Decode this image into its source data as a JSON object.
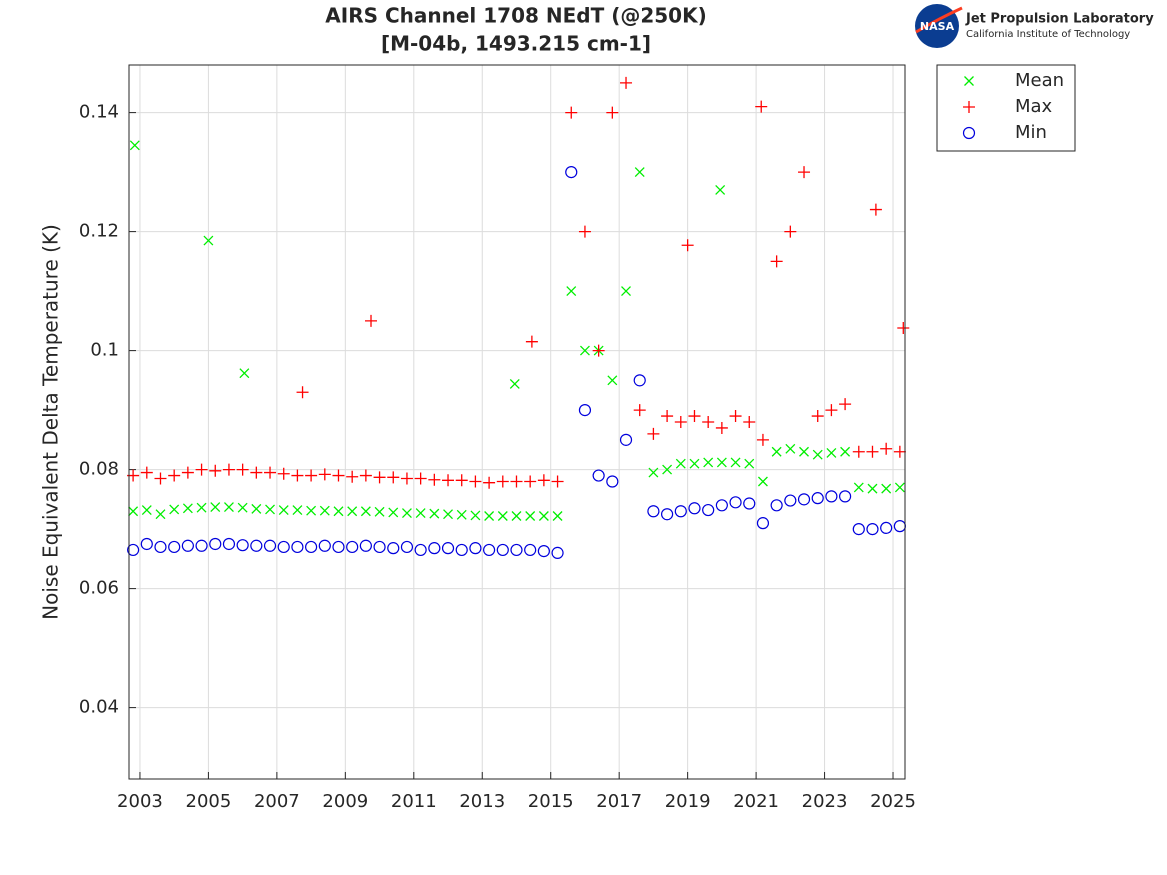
{
  "chart_data": {
    "type": "scatter",
    "title": "AIRS Channel 1708 NEdT (@250K)",
    "subtitle": "[M-04b, 1493.215 cm-1]",
    "y_label": "Noise Equivalent Delta Temperature (K)",
    "logo": {
      "badge": "NASA",
      "name": "Jet Propulsion Laboratory",
      "institution": "California Institute of Technology"
    },
    "x": [
      2002.8,
      2003.2,
      2003.6,
      2004.0,
      2004.4,
      2004.8,
      2005.2,
      2005.6,
      2006.0,
      2006.4,
      2006.8,
      2007.2,
      2007.6,
      2008.0,
      2008.4,
      2008.8,
      2009.2,
      2009.6,
      2010.0,
      2010.4,
      2010.8,
      2011.2,
      2011.6,
      2012.0,
      2012.4,
      2012.8,
      2013.2,
      2013.6,
      2014.0,
      2014.4,
      2014.8,
      2015.2,
      2015.6,
      2016.0,
      2016.4,
      2016.8,
      2017.2,
      2017.6,
      2018.0,
      2018.4,
      2018.8,
      2019.2,
      2019.6,
      2020.0,
      2020.4,
      2020.8,
      2021.2,
      2021.6,
      2022.0,
      2022.4,
      2022.8,
      2023.2,
      2023.6,
      2024.0,
      2024.4,
      2024.8,
      2025.2,
      2002.85,
      2005.0,
      2006.05,
      2009.75,
      2007.75,
      2013.95,
      2014.45,
      2019.95,
      2019.0,
      2024.5,
      2025.3,
      2021.15
    ],
    "series": [
      {
        "name": "Mean",
        "color": "#00ee00",
        "marker": "x",
        "values": [
          0.073,
          0.0732,
          0.0725,
          0.0733,
          0.0735,
          0.0736,
          0.0737,
          0.0737,
          0.0736,
          0.0734,
          0.0733,
          0.0732,
          0.0732,
          0.0731,
          0.0731,
          0.073,
          0.073,
          0.073,
          0.0729,
          0.0728,
          0.0727,
          0.0727,
          0.0726,
          0.0725,
          0.0724,
          0.0723,
          0.0722,
          0.0722,
          0.0722,
          0.0722,
          0.0722,
          0.0722,
          0.11,
          0.1,
          0.1,
          0.095,
          0.11,
          0.13,
          0.0795,
          0.08,
          0.081,
          0.081,
          0.0812,
          0.0812,
          0.0812,
          0.081,
          0.078,
          0.083,
          0.0835,
          0.083,
          0.0825,
          0.0828,
          0.083,
          0.077,
          0.0768,
          0.0768,
          0.077,
          0.1345,
          0.1185,
          0.0962,
          null,
          null,
          0.0944,
          null,
          0.127,
          null,
          null,
          null,
          null
        ]
      },
      {
        "name": "Max",
        "color": "#ff0000",
        "marker": "+",
        "values": [
          0.079,
          0.0795,
          0.0785,
          0.079,
          0.0795,
          0.08,
          0.0798,
          0.08,
          0.08,
          0.0795,
          0.0795,
          0.0793,
          0.079,
          0.079,
          0.0792,
          0.079,
          0.0788,
          0.079,
          0.0787,
          0.0787,
          0.0785,
          0.0785,
          0.0783,
          0.0782,
          0.0782,
          0.078,
          0.0778,
          0.078,
          0.078,
          0.078,
          0.0782,
          0.078,
          0.14,
          0.12,
          0.1,
          0.14,
          0.145,
          0.09,
          0.086,
          0.089,
          0.088,
          0.089,
          0.088,
          0.087,
          0.089,
          0.088,
          0.085,
          0.115,
          0.12,
          0.13,
          0.089,
          0.09,
          0.091,
          0.083,
          0.083,
          0.0835,
          0.083,
          null,
          null,
          null,
          0.105,
          0.093,
          null,
          0.1015,
          null,
          0.1177,
          0.1237,
          0.1038,
          0.141
        ]
      },
      {
        "name": "Min",
        "color": "#0000dd",
        "marker": "o",
        "values": [
          0.0665,
          0.0675,
          0.067,
          0.067,
          0.0672,
          0.0672,
          0.0675,
          0.0675,
          0.0673,
          0.0672,
          0.0672,
          0.067,
          0.067,
          0.067,
          0.0672,
          0.067,
          0.067,
          0.0672,
          0.067,
          0.0668,
          0.067,
          0.0665,
          0.0668,
          0.0668,
          0.0665,
          0.0668,
          0.0665,
          0.0665,
          0.0665,
          0.0665,
          0.0663,
          0.066,
          0.13,
          0.09,
          0.079,
          0.078,
          0.085,
          0.095,
          0.073,
          0.0725,
          0.073,
          0.0735,
          0.0732,
          0.074,
          0.0745,
          0.0743,
          0.071,
          0.074,
          0.0748,
          0.075,
          0.0752,
          0.0755,
          0.0755,
          0.07,
          0.07,
          0.0702,
          0.0705,
          null,
          null,
          null,
          null,
          null,
          null,
          null,
          null,
          null,
          null,
          null,
          null
        ]
      }
    ],
    "xlim": [
      2002.68,
      2025.35
    ],
    "xticks": [
      2003,
      2005,
      2007,
      2009,
      2011,
      2013,
      2015,
      2017,
      2019,
      2021,
      2023,
      2025
    ],
    "ylim": [
      0.028,
      0.148
    ],
    "yticks": [
      0.04,
      0.06,
      0.08,
      0.1,
      0.12,
      0.14
    ],
    "grid": true,
    "legend": "outside-right"
  }
}
